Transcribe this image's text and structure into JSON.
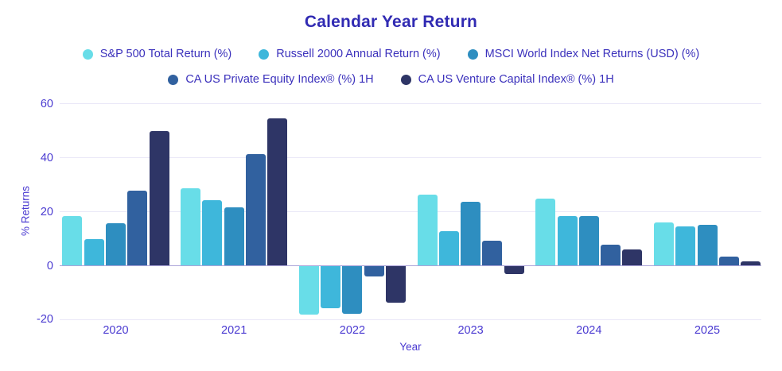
{
  "title": "Calendar Year Return",
  "axes": {
    "y_label": "% Returns",
    "x_label": "Year",
    "y_ticks": [
      60,
      40,
      20,
      0,
      -20
    ]
  },
  "colors": {
    "title_text": "#312BB3",
    "legend_text": "#3B31BC",
    "tick_text": "#4A3AD1",
    "gridline": "#E9E7F7",
    "zero_line": "#ACA4D9",
    "background": "#FFFFFF"
  },
  "chart_data": {
    "type": "bar",
    "title": "Calendar Year Return",
    "xlabel": "Year",
    "ylabel": "% Returns",
    "ylim": [
      -20,
      60
    ],
    "grid": true,
    "legend_position": "top",
    "categories": [
      "2020",
      "2021",
      "2022",
      "2023",
      "2024",
      "2025"
    ],
    "series": [
      {
        "key": "sp500-total-return",
        "name": "S&P 500 Total Return (%)",
        "color": "#68DDE8",
        "values": [
          18.4,
          28.7,
          -18.1,
          26.3,
          24.8,
          16.0
        ]
      },
      {
        "key": "russell-2000-annual-return",
        "name": "Russell 2000 Annual Return (%)",
        "color": "#3EB7DB",
        "values": [
          10.0,
          24.4,
          -15.8,
          12.9,
          18.3,
          14.6
        ]
      },
      {
        "key": "msci-world-net-returns",
        "name": "MSCI World Index Net Returns (USD) (%)",
        "color": "#2E8EC0",
        "values": [
          15.9,
          21.8,
          -17.8,
          23.8,
          18.5,
          15.2
        ]
      },
      {
        "key": "ca-us-private-equity",
        "name": "CA US Private Equity Index® (%) 1H",
        "color": "#31619F",
        "values": [
          27.7,
          41.3,
          -4.0,
          9.2,
          7.9,
          3.5
        ]
      },
      {
        "key": "ca-us-venture-capital",
        "name": "CA US Venture Capital Index® (%) 1H",
        "color": "#2E3566",
        "values": [
          50.0,
          54.6,
          -13.8,
          -3.2,
          6.0,
          1.5
        ]
      }
    ]
  }
}
